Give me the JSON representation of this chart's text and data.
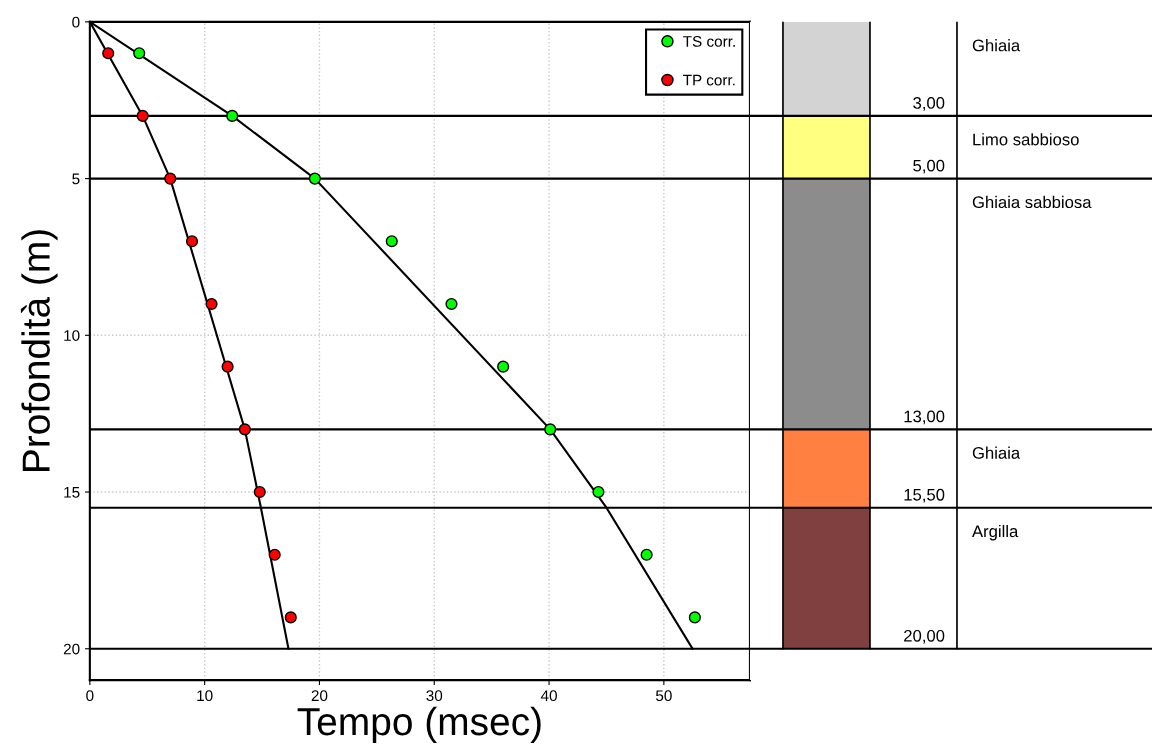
{
  "chart_data": [
    {
      "type": "scatter",
      "xlabel": "Tempo (msec)",
      "ylabel": "Profondità (m)",
      "xlim": [
        0,
        57.5
      ],
      "xticks": [
        0,
        10,
        20,
        30,
        40,
        50
      ],
      "ylim": [
        21,
        0
      ],
      "yticks": [
        0,
        5,
        10,
        15,
        20
      ],
      "grid": true,
      "legend": "top right",
      "marker": "circle",
      "series": [
        {
          "name": "TS corr.",
          "color": "#00ff00",
          "x": [
            4.3,
            12.4,
            19.6,
            26.3,
            31.5,
            36.0,
            40.1,
            44.3,
            48.5,
            52.7
          ],
          "values": [
            1,
            3,
            5,
            7,
            9,
            11,
            13,
            15,
            17,
            19
          ]
        },
        {
          "name": "TP corr.",
          "color": "#ff0000",
          "x": [
            1.6,
            4.6,
            7.0,
            8.9,
            10.6,
            12.0,
            13.5,
            14.8,
            16.1,
            17.5
          ],
          "values": [
            1,
            3,
            5,
            7,
            9,
            11,
            13,
            15,
            17,
            19
          ]
        },
        {
          "color": "#000000",
          "type": "line",
          "marker": "none",
          "x": [
            0,
            12.4,
            19.6,
            40.1,
            45.0,
            52.5
          ],
          "values": [
            0,
            3,
            5,
            13,
            15.5,
            20
          ]
        },
        {
          "color": "#000000",
          "type": "line",
          "marker": "none",
          "x": [
            0,
            4.6,
            7.0,
            13.5,
            14.9,
            17.3
          ],
          "values": [
            0,
            3,
            5,
            13,
            15.5,
            20
          ]
        }
      ],
      "ref_lines": [
        {
          "axis": "y",
          "value": 3
        },
        {
          "axis": "y",
          "value": 5
        },
        {
          "axis": "y",
          "value": 13
        },
        {
          "axis": "y",
          "value": 15.5
        },
        {
          "axis": "y",
          "value": 20
        }
      ]
    },
    {
      "type": "bar",
      "stacked": true,
      "categories": [
        null
      ],
      "ylim": [
        21,
        0
      ],
      "tick_labels": false,
      "series": [
        {
          "name": "Ghiaia",
          "color": "#d3d3d3",
          "values": [
            3
          ]
        },
        {
          "name": "Limo sabbioso",
          "color": "#ffff80",
          "values": [
            2
          ]
        },
        {
          "name": "Ghiaia sabbiosa",
          "color": "#8c8c8c",
          "values": [
            8
          ]
        },
        {
          "name": "Ghiaia",
          "color": "#ff8040",
          "values": [
            2.5
          ]
        },
        {
          "name": "Argilla",
          "color": "#804040",
          "values": [
            4.5
          ]
        }
      ],
      "annotations": [
        {
          "text": "3,00",
          "y": 3
        },
        {
          "text": "5,00",
          "y": 5
        },
        {
          "text": "13,00",
          "y": 13
        },
        {
          "text": "15,50",
          "y": 15.5
        },
        {
          "text": "20,00",
          "y": 20
        }
      ],
      "ref_lines": [
        {
          "axis": "y",
          "value": 3
        },
        {
          "axis": "y",
          "value": 5
        },
        {
          "axis": "y",
          "value": 13
        },
        {
          "axis": "y",
          "value": 15.5
        },
        {
          "axis": "y",
          "value": 20
        }
      ]
    }
  ]
}
